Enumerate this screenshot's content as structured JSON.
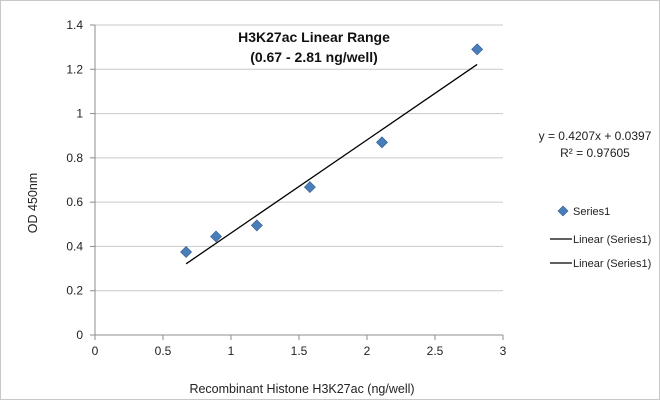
{
  "chart_data": {
    "type": "scatter",
    "title": "H3K27ac Linear Range",
    "subtitle": "(0.67 - 2.81 ng/well)",
    "xlabel": "Recombinant Histone H3K27ac (ng/well)",
    "ylabel": "OD 450nm",
    "xlim": [
      0,
      3
    ],
    "ylim": [
      0,
      1.4
    ],
    "x_ticks": [
      "0",
      "0.5",
      "1",
      "1.5",
      "2",
      "2.5",
      "3"
    ],
    "y_ticks": [
      "0",
      "0.2",
      "0.4",
      "0.6",
      "0.8",
      "1",
      "1.2",
      "1.4"
    ],
    "grid": "horizontal",
    "series": [
      {
        "name": "Series1",
        "marker": "diamond",
        "color": "#4a7ebb",
        "x": [
          0.67,
          0.89,
          1.19,
          1.58,
          2.11,
          2.81
        ],
        "y": [
          0.375,
          0.445,
          0.495,
          0.668,
          0.87,
          1.29
        ]
      }
    ],
    "trendline": {
      "legend": "Linear (Series1)",
      "slope": 0.4207,
      "intercept": 0.0397,
      "x_range": [
        0.67,
        2.81
      ],
      "color": "#000000"
    },
    "equation": "y = 0.4207x + 0.0397",
    "r_squared": "R² = 0.97605",
    "legend": {
      "placement": "right",
      "entries": [
        "Series1",
        "Linear (Series1)",
        "Linear (Series1)"
      ]
    }
  }
}
